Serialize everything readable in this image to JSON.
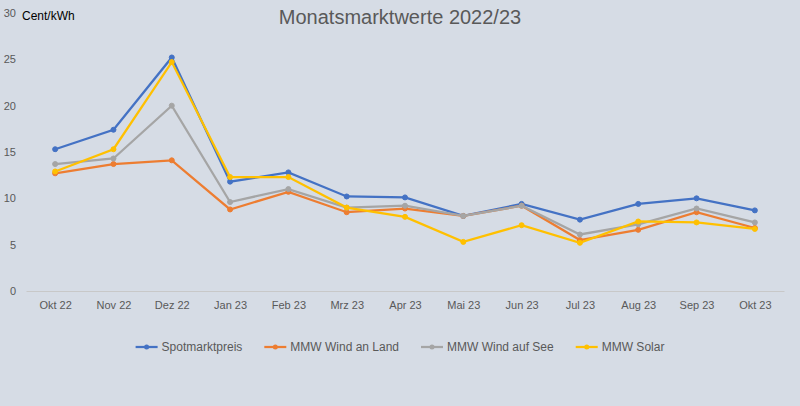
{
  "chart_data": {
    "type": "line",
    "title": "Monatsmarktwerte 2022/23",
    "y_label": "Cent/kWh",
    "categories": [
      "Okt 22",
      "Nov 22",
      "Dez 22",
      "Jan 23",
      "Feb 23",
      "Mrz 23",
      "Apr 23",
      "Mai 23",
      "Jun 23",
      "Jul 23",
      "Aug 23",
      "Sep 23",
      "Okt 23"
    ],
    "series": [
      {
        "name": "Spotmarktpreis",
        "color": "#4472c4",
        "values": [
          15.3,
          17.4,
          25.2,
          11.8,
          12.8,
          10.2,
          10.1,
          8.1,
          9.4,
          7.7,
          9.4,
          10.0,
          8.7
        ]
      },
      {
        "name": "MMW Wind an Land",
        "color": "#ed7d31",
        "values": [
          12.7,
          13.7,
          14.1,
          8.8,
          10.7,
          8.5,
          8.9,
          8.1,
          9.2,
          5.5,
          6.6,
          8.5,
          6.8
        ]
      },
      {
        "name": "MMW Wind auf See",
        "color": "#a5a5a5",
        "values": [
          13.7,
          14.3,
          20.0,
          9.6,
          11.0,
          9.0,
          9.2,
          8.1,
          9.2,
          6.1,
          7.2,
          8.9,
          7.4
        ]
      },
      {
        "name": "MMW Solar",
        "color": "#ffc000",
        "values": [
          12.9,
          15.3,
          24.7,
          12.3,
          12.3,
          9.0,
          8.0,
          5.3,
          7.1,
          5.2,
          7.5,
          7.4,
          6.7
        ]
      }
    ],
    "ylim": [
      0,
      30
    ],
    "yticks": [
      0,
      5,
      10,
      15,
      20,
      25,
      30
    ],
    "grid": false,
    "legend": "bottom",
    "marker": "circle"
  }
}
